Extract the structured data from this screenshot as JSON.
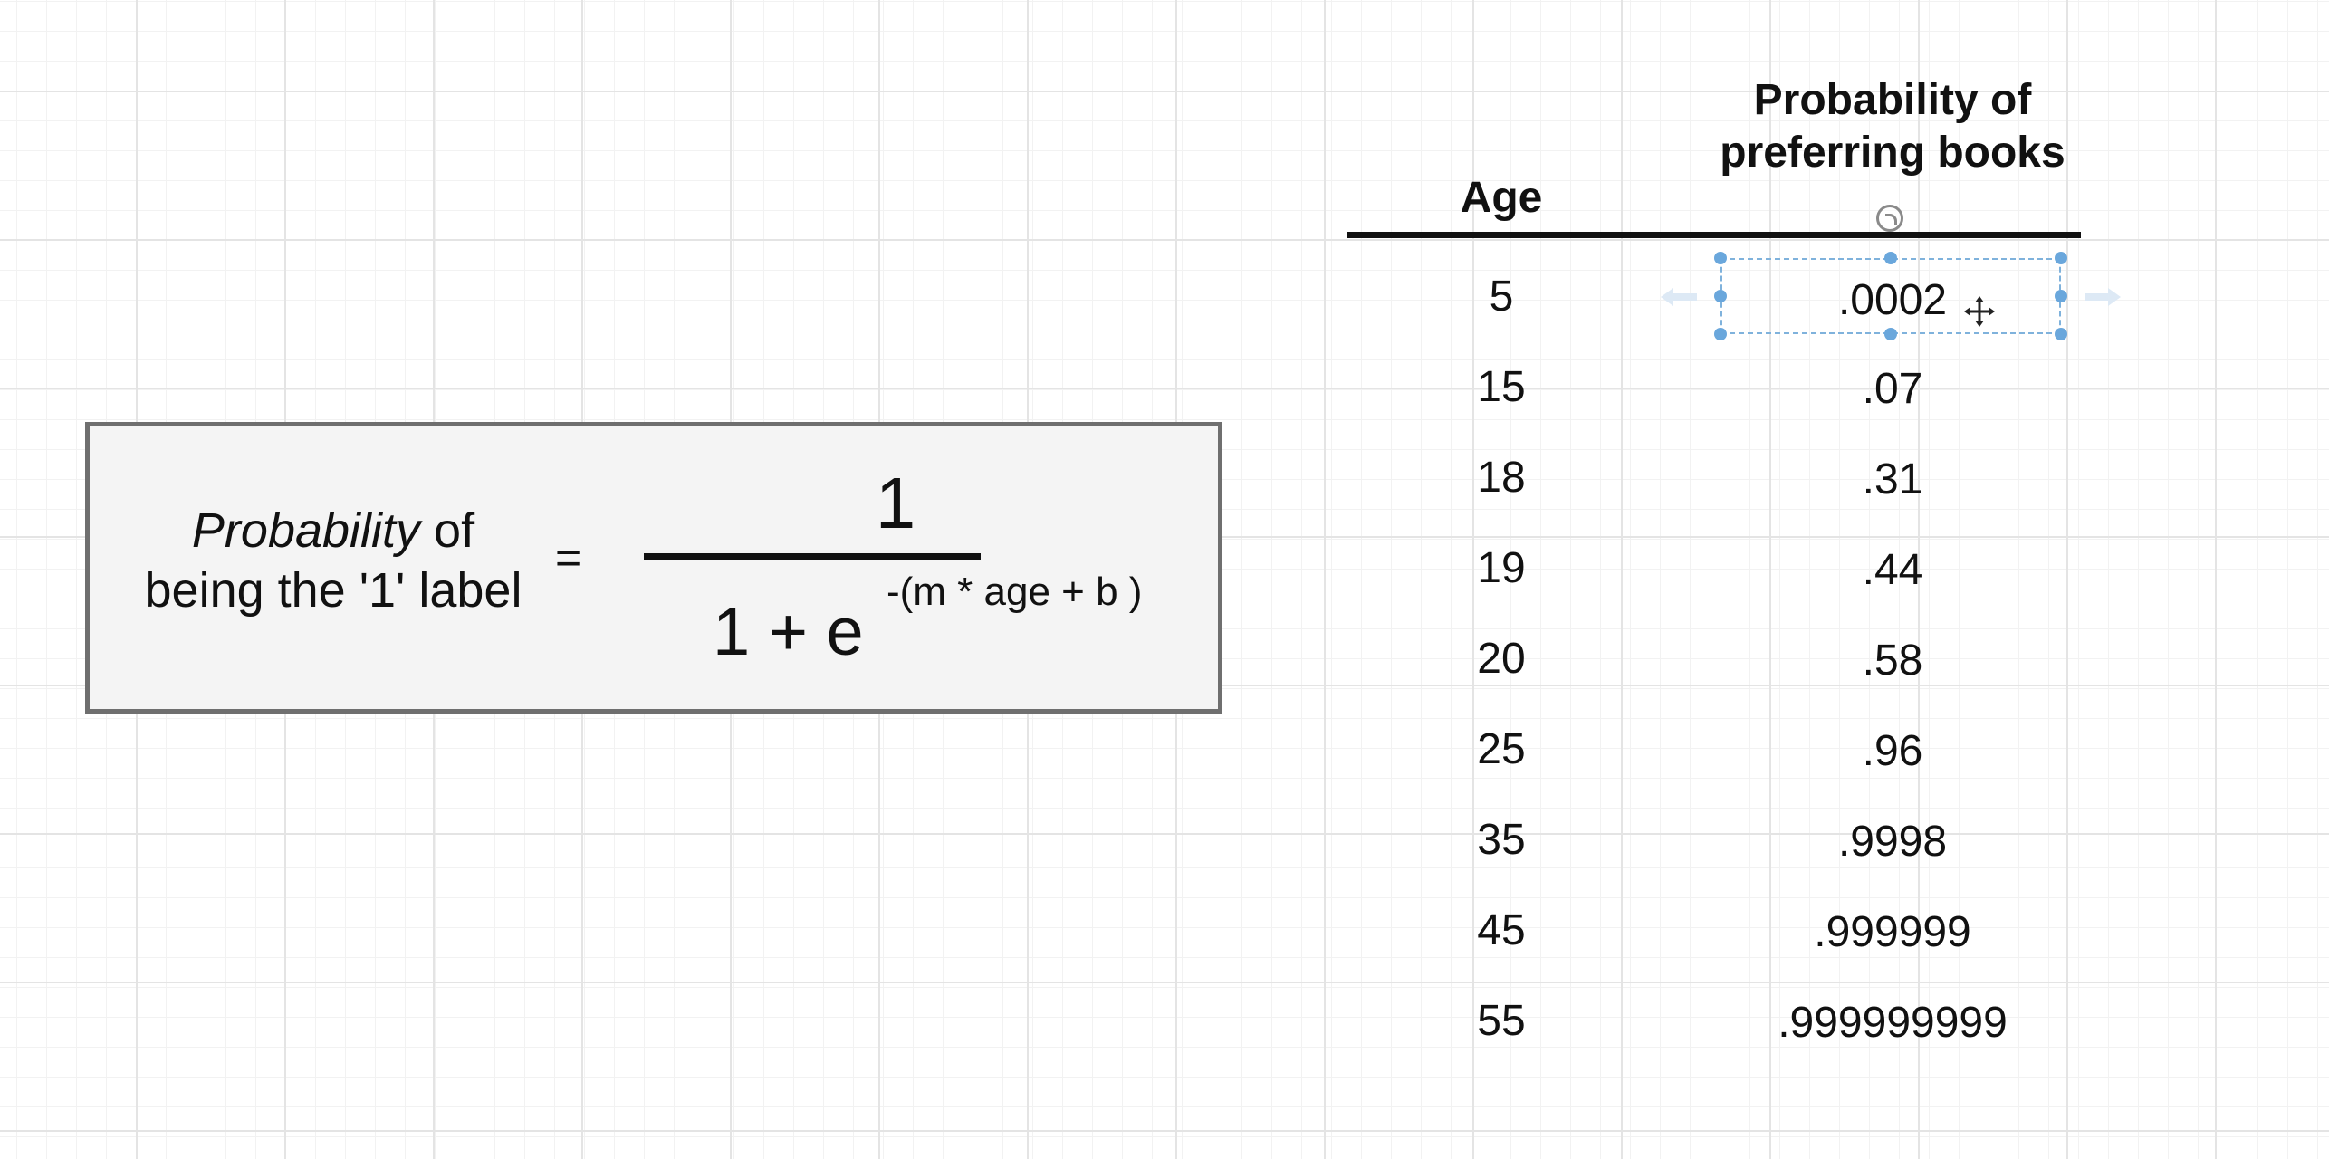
{
  "formula": {
    "lhs_emphasis": "Probability",
    "lhs_rest_line1": " of",
    "lhs_line2": "being the '1' label",
    "equals": "=",
    "numerator": "1",
    "denominator": "1 + e",
    "exponent": "-(m * age + b )"
  },
  "table": {
    "header_age": "Age",
    "header_prob": "Probability of preferring books",
    "rows": [
      {
        "age": "5",
        "prob": ".0002"
      },
      {
        "age": "15",
        "prob": ".07"
      },
      {
        "age": "18",
        "prob": ".31"
      },
      {
        "age": "19",
        "prob": ".44"
      },
      {
        "age": "20",
        "prob": ".58"
      },
      {
        "age": "25",
        "prob": ".96"
      },
      {
        "age": "35",
        "prob": ".9998"
      },
      {
        "age": "45",
        "prob": ".999999"
      },
      {
        "age": "55",
        "prob": ".999999999"
      }
    ]
  },
  "selection": {
    "selected_cell": ".0002",
    "accent_color": "#6aa7dc"
  }
}
